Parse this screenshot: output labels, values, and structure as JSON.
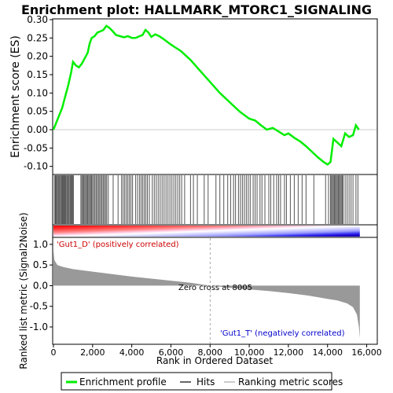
{
  "chart_data": {
    "type": "line",
    "title": "Enrichment plot: HALLMARK_MTORC1_SIGNALING",
    "es_panel": {
      "ylabel": "Enrichment score (ES)",
      "ylim": [
        -0.12,
        0.3
      ],
      "yticks": [
        "0.30",
        "0.25",
        "0.20",
        "0.15",
        "0.10",
        "0.05",
        "0.00",
        "-0.05",
        "-0.10"
      ],
      "ytick_values": [
        0.3,
        0.25,
        0.2,
        0.15,
        0.1,
        0.05,
        0.0,
        -0.05,
        -0.1
      ],
      "series": [
        {
          "name": "Enrichment profile",
          "color": "#00ee00",
          "points": [
            [
              0,
              0.0
            ],
            [
              150,
              0.02
            ],
            [
              300,
              0.04
            ],
            [
              450,
              0.06
            ],
            [
              600,
              0.09
            ],
            [
              750,
              0.12
            ],
            [
              900,
              0.155
            ],
            [
              1000,
              0.185
            ],
            [
              1150,
              0.175
            ],
            [
              1300,
              0.17
            ],
            [
              1450,
              0.18
            ],
            [
              1600,
              0.195
            ],
            [
              1750,
              0.21
            ],
            [
              1850,
              0.235
            ],
            [
              1950,
              0.25
            ],
            [
              2100,
              0.255
            ],
            [
              2250,
              0.265
            ],
            [
              2400,
              0.268
            ],
            [
              2550,
              0.272
            ],
            [
              2700,
              0.283
            ],
            [
              2850,
              0.278
            ],
            [
              3000,
              0.27
            ],
            [
              3200,
              0.258
            ],
            [
              3400,
              0.255
            ],
            [
              3600,
              0.252
            ],
            [
              3800,
              0.255
            ],
            [
              4000,
              0.25
            ],
            [
              4200,
              0.25
            ],
            [
              4400,
              0.255
            ],
            [
              4550,
              0.258
            ],
            [
              4700,
              0.272
            ],
            [
              4850,
              0.265
            ],
            [
              5000,
              0.253
            ],
            [
              5200,
              0.26
            ],
            [
              5400,
              0.255
            ],
            [
              5600,
              0.248
            ],
            [
              5800,
              0.24
            ],
            [
              6000,
              0.232
            ],
            [
              6200,
              0.225
            ],
            [
              6500,
              0.215
            ],
            [
              7000,
              0.19
            ],
            [
              7500,
              0.16
            ],
            [
              8000,
              0.13
            ],
            [
              8500,
              0.1
            ],
            [
              9000,
              0.075
            ],
            [
              9500,
              0.05
            ],
            [
              10000,
              0.03
            ],
            [
              10300,
              0.025
            ],
            [
              10600,
              0.012
            ],
            [
              10900,
              0.0
            ],
            [
              11200,
              0.005
            ],
            [
              11500,
              -0.005
            ],
            [
              11800,
              -0.015
            ],
            [
              12000,
              -0.01
            ],
            [
              12300,
              -0.022
            ],
            [
              12600,
              -0.032
            ],
            [
              12900,
              -0.045
            ],
            [
              13200,
              -0.06
            ],
            [
              13500,
              -0.075
            ],
            [
              13800,
              -0.088
            ],
            [
              14000,
              -0.095
            ],
            [
              14150,
              -0.088
            ],
            [
              14300,
              -0.025
            ],
            [
              14500,
              -0.035
            ],
            [
              14700,
              -0.045
            ],
            [
              14900,
              -0.01
            ],
            [
              15100,
              -0.02
            ],
            [
              15300,
              -0.015
            ],
            [
              15450,
              0.012
            ],
            [
              15600,
              0.0
            ]
          ]
        }
      ]
    },
    "hits": [
      50,
      100,
      140,
      190,
      230,
      270,
      310,
      350,
      400,
      440,
      480,
      520,
      560,
      600,
      640,
      690,
      730,
      770,
      810,
      860,
      900,
      940,
      980,
      1020,
      1400,
      1450,
      1500,
      1550,
      1600,
      1650,
      1700,
      1750,
      1800,
      1850,
      1900,
      1950,
      2000,
      2060,
      2120,
      2180,
      2240,
      2300,
      2360,
      2420,
      2480,
      2540,
      2600,
      2660,
      2720,
      2800,
      3050,
      3300,
      3480,
      3560,
      3640,
      3720,
      3800,
      3880,
      3960,
      4040,
      4200,
      4300,
      4400,
      4480,
      4560,
      4640,
      4720,
      4800,
      4900,
      5050,
      5150,
      5250,
      5350,
      5450,
      5550,
      5650,
      5750,
      5850,
      5950,
      6050,
      6150,
      6250,
      6350,
      6450,
      6550,
      6700,
      7000,
      7150,
      7350,
      7700,
      7900,
      8300,
      8500,
      8700,
      8900,
      9050,
      9200,
      9300,
      9450,
      9550,
      9650,
      9750,
      9850,
      9950,
      10050,
      10200,
      10300,
      10400,
      10550,
      10650,
      10800,
      11000,
      11100,
      11250,
      11400,
      11500,
      11600,
      11800,
      11900,
      12100,
      12300,
      12500,
      12700,
      12900,
      13300,
      13900,
      14050,
      14150,
      14200,
      14250,
      14300,
      14350,
      14400,
      14450,
      14500,
      14550,
      14600,
      14650,
      14700,
      14750,
      14800,
      14900,
      15000,
      15100,
      15200,
      15300,
      15450,
      15550
    ],
    "metric_panel": {
      "ylabel": "Ranked list metric (Signal2Noise)",
      "ylim": [
        -1.4,
        1.15
      ],
      "yticks": [
        "1.0",
        "0.5",
        "0.0",
        "-0.5",
        "-1.0"
      ],
      "ytick_values": [
        1.0,
        0.5,
        0.0,
        -0.5,
        -1.0
      ],
      "profile": [
        [
          0,
          0.85
        ],
        [
          50,
          0.62
        ],
        [
          200,
          0.5
        ],
        [
          500,
          0.45
        ],
        [
          1000,
          0.4
        ],
        [
          2000,
          0.34
        ],
        [
          3000,
          0.28
        ],
        [
          4000,
          0.22
        ],
        [
          5000,
          0.17
        ],
        [
          6000,
          0.12
        ],
        [
          7000,
          0.07
        ],
        [
          8005,
          0.0
        ],
        [
          9000,
          -0.05
        ],
        [
          10000,
          -0.09
        ],
        [
          11000,
          -0.13
        ],
        [
          12000,
          -0.18
        ],
        [
          13000,
          -0.24
        ],
        [
          14000,
          -0.32
        ],
        [
          14500,
          -0.36
        ],
        [
          15000,
          -0.43
        ],
        [
          15300,
          -0.52
        ],
        [
          15500,
          -0.7
        ],
        [
          15600,
          -1.0
        ],
        [
          15650,
          -1.27
        ]
      ],
      "annotations": {
        "positive": "'Gut1_D' (positively correlated)",
        "zero_cross": "Zero cross at 8005",
        "negative": "'Gut1_T' (negatively correlated)"
      },
      "zero_cross": 8005
    },
    "xlabel": "Rank in Ordered Dataset",
    "xlim": [
      0,
      16500
    ],
    "xticks": [
      "0",
      "2,000",
      "4,000",
      "6,000",
      "8,000",
      "10,000",
      "12,000",
      "14,000",
      "16,000"
    ],
    "xtick_values": [
      0,
      2000,
      4000,
      6000,
      8000,
      10000,
      12000,
      14000,
      16000
    ],
    "total_genes": 15650,
    "legend": {
      "placement": "bottom",
      "entries": [
        {
          "label": "Enrichment profile",
          "color": "#00ee00"
        },
        {
          "label": "Hits",
          "color": "#666666"
        },
        {
          "label": "Ranking metric scores",
          "color": "#cccccc"
        }
      ]
    },
    "colors": {
      "pos_annotation": "#cc0000",
      "neg_annotation": "#0000cc",
      "metric_fill": "#999999",
      "grid": "#dddddd"
    }
  }
}
